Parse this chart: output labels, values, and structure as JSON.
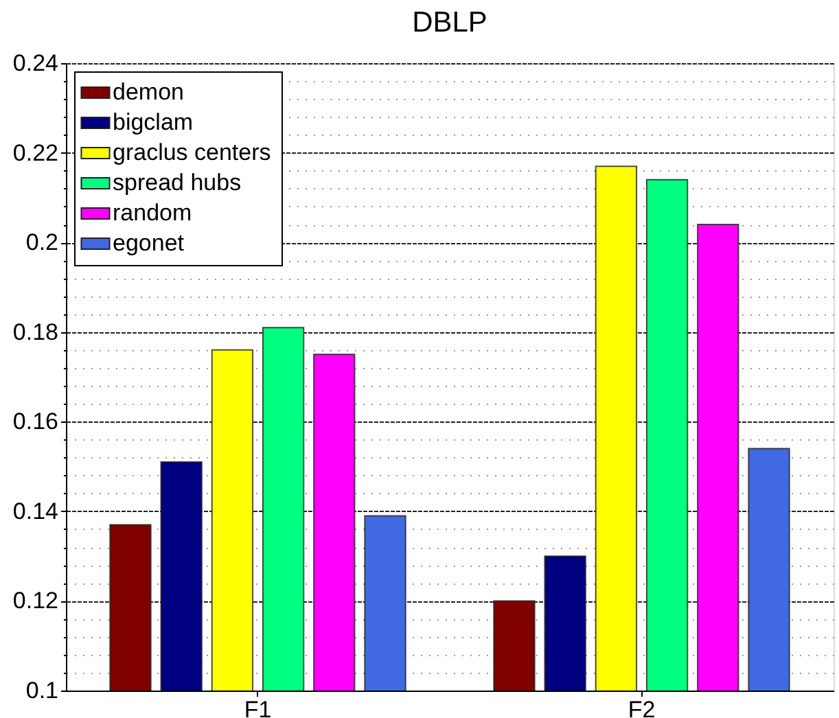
{
  "chart_data": {
    "type": "bar",
    "title": "DBLP",
    "categories": [
      "F1",
      "F2"
    ],
    "series": [
      {
        "name": "demon",
        "color": "#800000",
        "values": [
          0.137,
          0.12
        ]
      },
      {
        "name": "bigclam",
        "color": "#000080",
        "values": [
          0.151,
          0.13
        ]
      },
      {
        "name": "graclus centers",
        "color": "#ffff00",
        "values": [
          0.176,
          0.217
        ]
      },
      {
        "name": "spread hubs",
        "color": "#00ff80",
        "values": [
          0.181,
          0.214
        ]
      },
      {
        "name": "random",
        "color": "#ff00ff",
        "values": [
          0.175,
          0.204
        ]
      },
      {
        "name": "egonet",
        "color": "#4169e1",
        "values": [
          0.139,
          0.154
        ]
      }
    ],
    "ylim": [
      0.1,
      0.24
    ],
    "yticks": [
      0.1,
      {
        "value": 0.104,
        "label": null
      },
      {
        "value": 0.108,
        "label": null
      },
      {
        "value": 0.112,
        "label": null
      },
      {
        "value": 0.116,
        "label": null
      },
      0.12,
      {
        "value": 0.124,
        "label": null
      },
      {
        "value": 0.128,
        "label": null
      },
      {
        "value": 0.132,
        "label": null
      },
      {
        "value": 0.136,
        "label": null
      },
      0.14,
      {
        "value": 0.144,
        "label": null
      },
      {
        "value": 0.148,
        "label": null
      },
      {
        "value": 0.152,
        "label": null
      },
      {
        "value": 0.156,
        "label": null
      },
      0.16,
      {
        "value": 0.164,
        "label": null
      },
      {
        "value": 0.168,
        "label": null
      },
      {
        "value": 0.172,
        "label": null
      },
      {
        "value": 0.176,
        "label": null
      },
      0.18,
      {
        "value": 0.184,
        "label": null
      },
      {
        "value": 0.188,
        "label": null
      },
      {
        "value": 0.192,
        "label": null
      },
      {
        "value": 0.196,
        "label": null
      },
      0.2,
      {
        "value": 0.204,
        "label": null
      },
      {
        "value": 0.208,
        "label": null
      },
      {
        "value": 0.212,
        "label": null
      },
      {
        "value": 0.216,
        "label": null
      },
      0.22,
      {
        "value": 0.224,
        "label": null
      },
      {
        "value": 0.228,
        "label": null
      },
      {
        "value": 0.232,
        "label": null
      },
      {
        "value": 0.236,
        "label": null
      },
      0.24
    ],
    "grid": "y",
    "legend": "top left"
  }
}
